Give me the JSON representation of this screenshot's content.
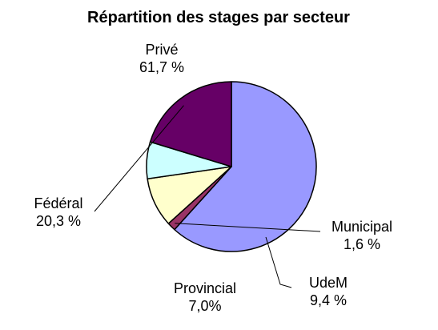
{
  "chart_data": {
    "type": "pie",
    "title": "Répartition des stages par secteur",
    "legend": "none",
    "slices": [
      {
        "label": "Privé",
        "value": 61.7,
        "value_label": "61,7 %",
        "color": "#9999ff"
      },
      {
        "label": "Municipal",
        "value": 1.6,
        "value_label": "1,6 %",
        "color": "#993366"
      },
      {
        "label": "UdeM",
        "value": 9.4,
        "value_label": "9,4 %",
        "color": "#ffffcc"
      },
      {
        "label": "Provincial",
        "value": 7.0,
        "value_label": "7,0%",
        "color": "#ccffff"
      },
      {
        "label": "Fédéral",
        "value": 20.3,
        "value_label": "20,3 %",
        "color": "#660066"
      }
    ]
  }
}
